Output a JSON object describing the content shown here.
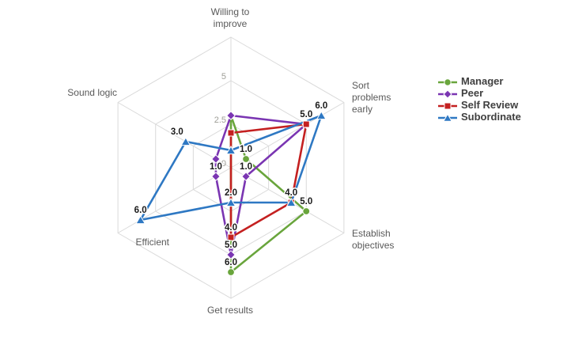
{
  "chart_data": {
    "type": "radar",
    "axes": [
      "Willing to improve",
      "Sort problems early",
      "Establish objectives",
      "Get results",
      "Efficient",
      "Sound logic"
    ],
    "axis_label_lines": [
      [
        "Willing to",
        "improve"
      ],
      [
        "Sort",
        "problems",
        "early"
      ],
      [
        "Establish",
        "objectives"
      ],
      [
        "Get results"
      ],
      [
        "Efficient"
      ],
      [
        "Sound logic"
      ]
    ],
    "scale": {
      "min": 0,
      "max": 7.5,
      "rings": [
        2.5,
        5,
        7.5
      ],
      "tick_labels": [
        "0",
        "2.5",
        "5"
      ],
      "tick_values": [
        0,
        2.5,
        5
      ]
    },
    "series": [
      {
        "name": "Manager",
        "color": "#69A53C",
        "marker": "circle",
        "values": [
          3.0,
          1.0,
          5.0,
          6.0,
          0.0,
          0.0
        ],
        "labels_shown": [
          false,
          true,
          true,
          true,
          false,
          false
        ]
      },
      {
        "name": "Peer",
        "color": "#7A35B2",
        "marker": "diamond",
        "values": [
          3.0,
          5.0,
          1.0,
          5.0,
          1.0,
          1.0
        ],
        "labels_shown": [
          false,
          false,
          true,
          true,
          true,
          false
        ]
      },
      {
        "name": "Self Review",
        "color": "#C42020",
        "marker": "square",
        "values": [
          2.0,
          5.0,
          4.0,
          4.0,
          0.0,
          0.0
        ],
        "labels_shown": [
          false,
          true,
          true,
          true,
          false,
          false
        ]
      },
      {
        "name": "Subordinate",
        "color": "#2E78C3",
        "marker": "triangle",
        "values": [
          1.0,
          6.0,
          4.0,
          2.0,
          6.0,
          3.0
        ],
        "labels_shown": [
          false,
          true,
          false,
          true,
          true,
          true
        ]
      }
    ],
    "legend_position": "right",
    "grid": true
  },
  "colors": {
    "background": "#FFFFFF",
    "grid": "#DADADA",
    "axis_label": "#595959",
    "tick_label": "#9E9E97",
    "data_label": "#1A1A1A",
    "legend_text": "#404040"
  }
}
